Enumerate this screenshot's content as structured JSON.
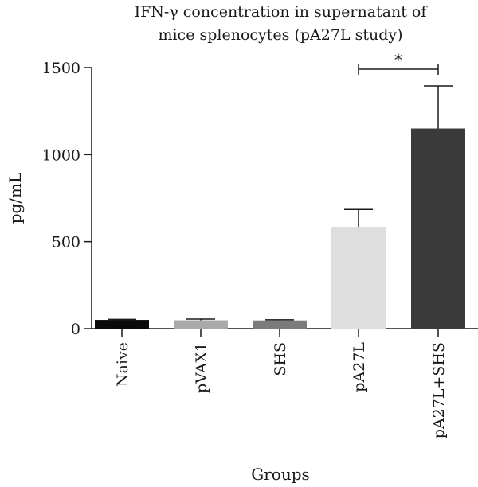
{
  "chart_data": {
    "type": "bar",
    "title_lines": [
      "IFN-γ concentration in supernatant of",
      "mice splenocytes (pA27L study)"
    ],
    "xlabel": "Groups",
    "ylabel": "pg/mL",
    "ylim": [
      0,
      1500
    ],
    "yticks": [
      0,
      500,
      1000,
      1500
    ],
    "categories": [
      "Naive",
      "pVAX1",
      "SHS",
      "pA27L",
      "pA27L+SHS"
    ],
    "values": [
      50,
      48,
      47,
      585,
      1150
    ],
    "error_upper": [
      3,
      7,
      4,
      100,
      245
    ],
    "colors": [
      "#0a0a0a",
      "#a9a9a9",
      "#7b7b7b",
      "#dedede",
      "#3a3a3a"
    ],
    "significance": {
      "between": [
        "pA27L",
        "pA27L+SHS"
      ],
      "label": "*"
    }
  }
}
